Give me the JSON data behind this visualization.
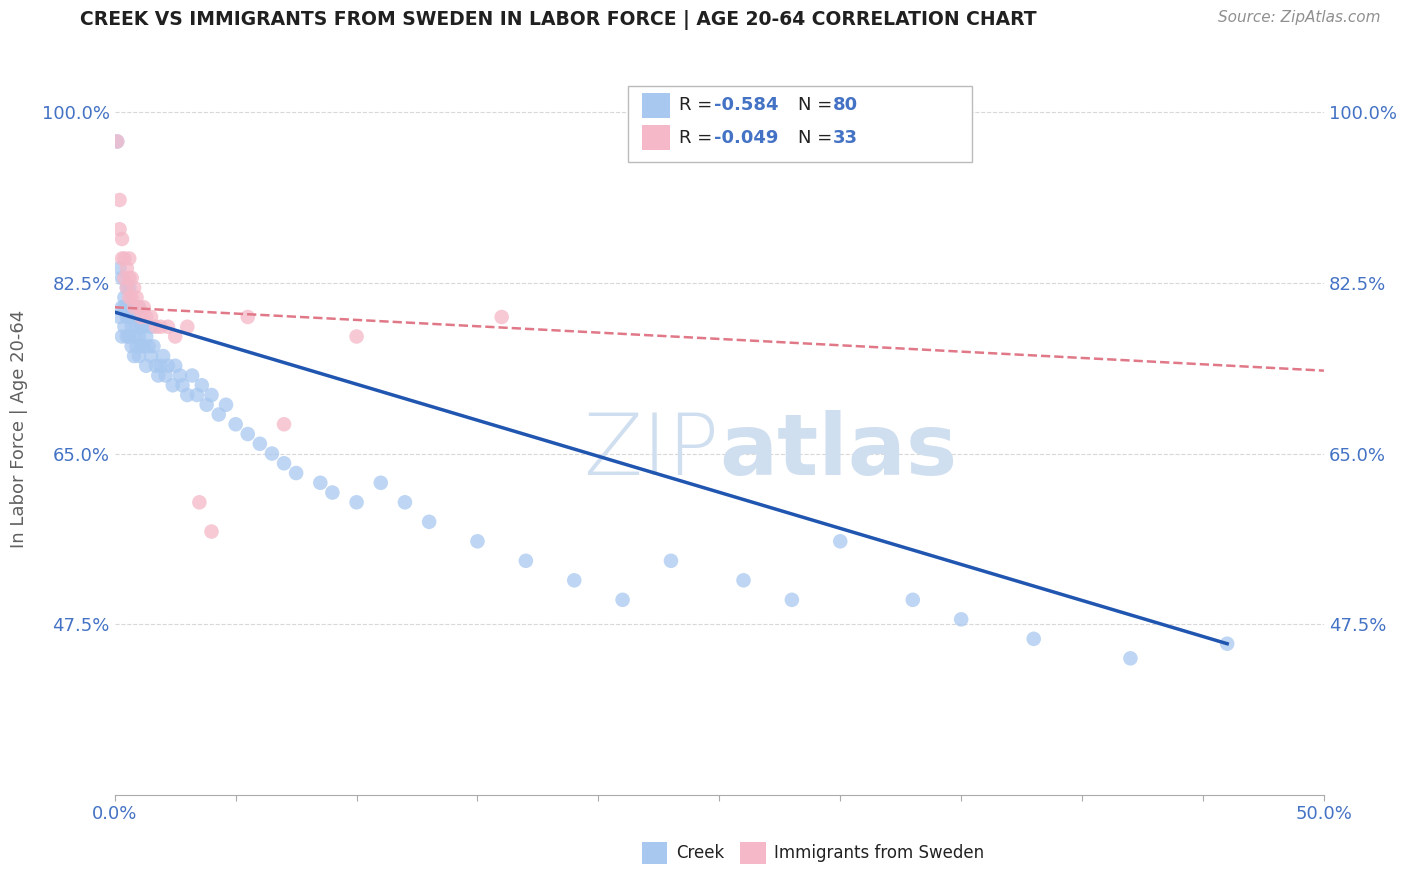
{
  "title": "CREEK VS IMMIGRANTS FROM SWEDEN IN LABOR FORCE | AGE 20-64 CORRELATION CHART",
  "source_text": "Source: ZipAtlas.com",
  "ylabel_text": "In Labor Force | Age 20-64",
  "xlim": [
    0.0,
    0.5
  ],
  "ylim": [
    0.3,
    1.05
  ],
  "x_ticks": [
    0.0,
    0.05,
    0.1,
    0.15,
    0.2,
    0.25,
    0.3,
    0.35,
    0.4,
    0.45,
    0.5
  ],
  "x_tick_labels": [
    "0.0%",
    "",
    "",
    "",
    "",
    "",
    "",
    "",
    "",
    "",
    "50.0%"
  ],
  "y_ticks": [
    0.475,
    0.65,
    0.825,
    1.0
  ],
  "y_tick_labels": [
    "47.5%",
    "65.0%",
    "82.5%",
    "100.0%"
  ],
  "creek_color": "#a8c8f0",
  "sweden_color": "#f4b8c8",
  "creek_line_color": "#2055b0",
  "sweden_line_color": "#e07888",
  "watermark_color": "#d0dff0",
  "legend_creek_R": "-0.584",
  "legend_creek_N": "80",
  "legend_sweden_R": "-0.049",
  "legend_sweden_N": "33",
  "creek_scatter_x": [
    0.001,
    0.002,
    0.002,
    0.003,
    0.003,
    0.003,
    0.004,
    0.004,
    0.004,
    0.005,
    0.005,
    0.005,
    0.005,
    0.006,
    0.006,
    0.006,
    0.007,
    0.007,
    0.007,
    0.008,
    0.008,
    0.008,
    0.009,
    0.009,
    0.01,
    0.01,
    0.01,
    0.011,
    0.011,
    0.012,
    0.012,
    0.013,
    0.013,
    0.014,
    0.015,
    0.015,
    0.016,
    0.017,
    0.018,
    0.019,
    0.02,
    0.021,
    0.022,
    0.024,
    0.025,
    0.027,
    0.028,
    0.03,
    0.032,
    0.034,
    0.036,
    0.038,
    0.04,
    0.043,
    0.046,
    0.05,
    0.055,
    0.06,
    0.065,
    0.07,
    0.075,
    0.085,
    0.09,
    0.1,
    0.11,
    0.12,
    0.13,
    0.15,
    0.17,
    0.19,
    0.21,
    0.23,
    0.26,
    0.28,
    0.3,
    0.33,
    0.35,
    0.38,
    0.42,
    0.46
  ],
  "creek_scatter_y": [
    0.97,
    0.84,
    0.79,
    0.83,
    0.8,
    0.77,
    0.81,
    0.8,
    0.78,
    0.82,
    0.8,
    0.79,
    0.77,
    0.82,
    0.79,
    0.77,
    0.8,
    0.78,
    0.76,
    0.79,
    0.77,
    0.75,
    0.78,
    0.76,
    0.8,
    0.77,
    0.75,
    0.78,
    0.76,
    0.78,
    0.76,
    0.77,
    0.74,
    0.76,
    0.78,
    0.75,
    0.76,
    0.74,
    0.73,
    0.74,
    0.75,
    0.73,
    0.74,
    0.72,
    0.74,
    0.73,
    0.72,
    0.71,
    0.73,
    0.71,
    0.72,
    0.7,
    0.71,
    0.69,
    0.7,
    0.68,
    0.67,
    0.66,
    0.65,
    0.64,
    0.63,
    0.62,
    0.61,
    0.6,
    0.62,
    0.6,
    0.58,
    0.56,
    0.54,
    0.52,
    0.5,
    0.54,
    0.52,
    0.5,
    0.56,
    0.5,
    0.48,
    0.46,
    0.44,
    0.455
  ],
  "sweden_scatter_x": [
    0.001,
    0.002,
    0.002,
    0.003,
    0.003,
    0.004,
    0.004,
    0.005,
    0.005,
    0.006,
    0.006,
    0.006,
    0.007,
    0.007,
    0.008,
    0.008,
    0.009,
    0.01,
    0.011,
    0.012,
    0.013,
    0.015,
    0.017,
    0.019,
    0.022,
    0.025,
    0.03,
    0.035,
    0.04,
    0.055,
    0.07,
    0.1,
    0.16
  ],
  "sweden_scatter_y": [
    0.97,
    0.91,
    0.88,
    0.87,
    0.85,
    0.85,
    0.83,
    0.84,
    0.82,
    0.85,
    0.83,
    0.81,
    0.83,
    0.81,
    0.82,
    0.8,
    0.81,
    0.8,
    0.79,
    0.8,
    0.79,
    0.79,
    0.78,
    0.78,
    0.78,
    0.77,
    0.78,
    0.6,
    0.57,
    0.79,
    0.68,
    0.77,
    0.79
  ],
  "creek_line_x0": 0.0,
  "creek_line_x1": 0.46,
  "creek_line_y0": 0.795,
  "creek_line_y1": 0.455,
  "sweden_line_x0": 0.0,
  "sweden_line_x1": 0.5,
  "sweden_line_y0": 0.8,
  "sweden_line_y1": 0.735,
  "background_color": "#ffffff",
  "grid_color": "#d8d8d8",
  "title_color": "#202020",
  "axis_label_color": "#606060",
  "tick_color": "#4472c4",
  "value_color": "#4472c4"
}
